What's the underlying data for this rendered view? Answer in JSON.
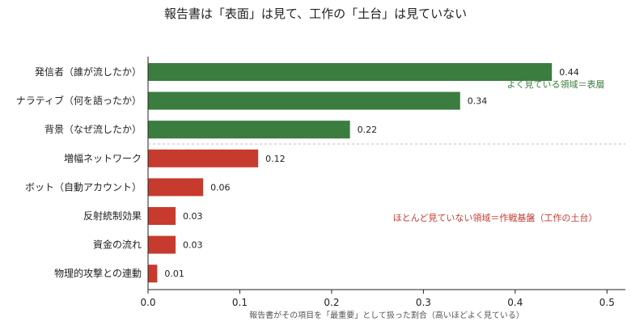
{
  "chart_data": {
    "type": "bar",
    "orientation": "horizontal",
    "title": "報告書は「表面」は見て、工作の「土台」は見ていない",
    "xlabel": "報告書がその項目を「最重要」として扱った割合（高いほどよく見ている）",
    "ylabel": "",
    "xlim": [
      0,
      0.52
    ],
    "x_ticks": [
      "0.0",
      "0.1",
      "0.2",
      "0.3",
      "0.4",
      "0.5"
    ],
    "categories": [
      "発信者（誰が流したか）",
      "ナラティブ（何を語ったか）",
      "背景（なぜ流したか）",
      "増幅ネットワーク",
      "ボット（自動アカウント）",
      "反射統制効果",
      "資金の流れ",
      "物理的攻撃との連動"
    ],
    "values": [
      0.44,
      0.34,
      0.22,
      0.12,
      0.06,
      0.03,
      0.03,
      0.01
    ],
    "value_labels": [
      "0.44",
      "0.34",
      "0.22",
      "0.12",
      "0.06",
      "0.03",
      "0.03",
      "0.01"
    ],
    "groups": [
      {
        "label": "よく見ている領域＝表層",
        "color": "#3a7d3e",
        "count": 3
      },
      {
        "label": "ほとんど見ていない領域＝作戦基盤（工作の土台）",
        "color": "#c73a2e",
        "count": 5
      }
    ],
    "grid": false
  }
}
